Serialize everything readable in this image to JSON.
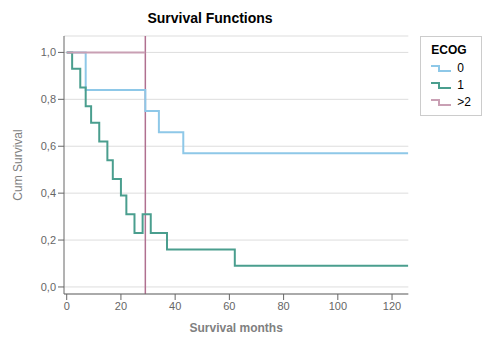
{
  "chart_data": {
    "type": "step",
    "title": "Survival Functions",
    "x_label": "Survival months",
    "y_label": "Cum Survival",
    "legend_title": "ECOG",
    "legend": "right",
    "grid": "y",
    "xlim": [
      -1,
      126
    ],
    "ylim": [
      -0.03,
      1.07
    ],
    "xticks": [
      0,
      20,
      40,
      60,
      80,
      100,
      120
    ],
    "yticks": [
      {
        "value": 0.0,
        "label": "0,0"
      },
      {
        "value": 0.2,
        "label": "0,2"
      },
      {
        "value": 0.4,
        "label": "0,4"
      },
      {
        "value": 0.6,
        "label": "0,6"
      },
      {
        "value": 0.8,
        "label": "0,8"
      },
      {
        "value": 1.0,
        "label": "1,0"
      }
    ],
    "series": [
      {
        "name": "0",
        "color": "#8ec8e8",
        "x": [
          0,
          4,
          7,
          9,
          11,
          15,
          29,
          34,
          43,
          126
        ],
        "values": [
          1.0,
          1.0,
          0.84,
          0.84,
          0.84,
          0.84,
          0.75,
          0.66,
          0.57,
          0.57
        ]
      },
      {
        "name": "1",
        "color": "#4a9e8e",
        "x": [
          0,
          2,
          5,
          7,
          9,
          12,
          15,
          17,
          20,
          22,
          25,
          28,
          31,
          37,
          44,
          62,
          65,
          100,
          126
        ],
        "values": [
          1.0,
          0.93,
          0.85,
          0.77,
          0.7,
          0.62,
          0.54,
          0.46,
          0.39,
          0.31,
          0.23,
          0.31,
          0.23,
          0.16,
          0.16,
          0.09,
          0.09,
          0.09,
          0.09
        ]
      },
      {
        "name": ">2",
        "color": "#c9a0b4",
        "x": [
          0,
          29
        ],
        "values": [
          1.0,
          1.0
        ]
      }
    ],
    "vlines": [
      {
        "x": 29,
        "color": "#b07090"
      }
    ]
  }
}
